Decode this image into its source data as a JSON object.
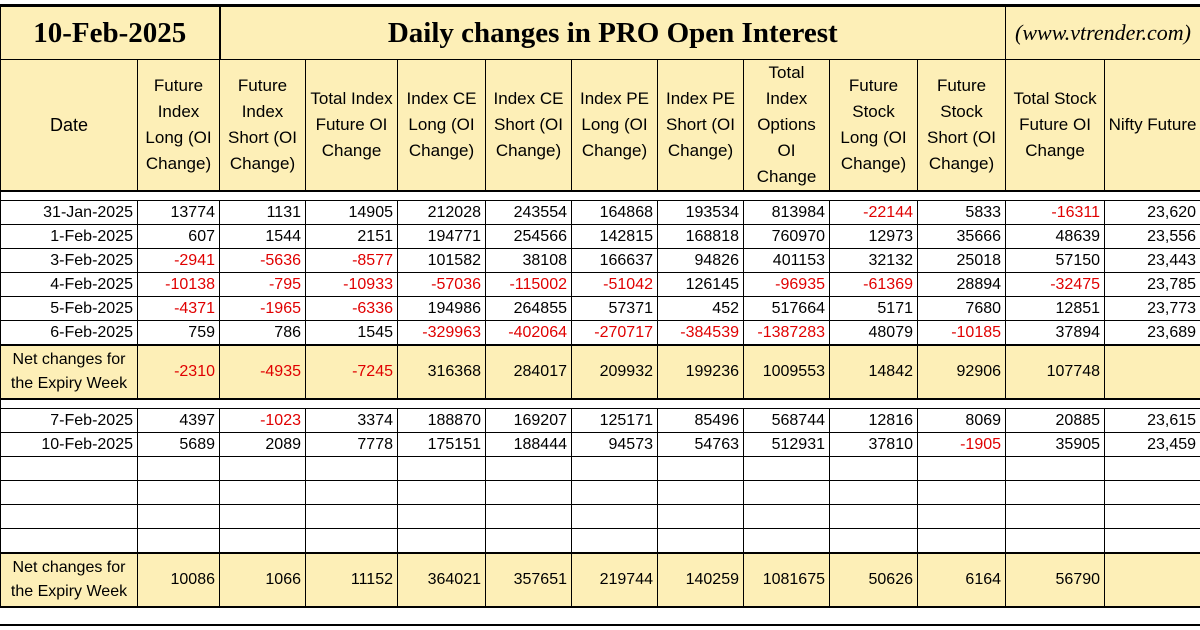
{
  "header": {
    "date": "10-Feb-2025",
    "title": "Daily changes in PRO Open Interest",
    "site": "(www.vtrender.com)"
  },
  "columns": [
    "Date",
    "Future Index Long (OI Change)",
    "Future Index Short (OI Change)",
    "Total Index Future OI Change",
    "Index CE Long (OI Change)",
    "Index CE Short (OI Change)",
    "Index PE Long (OI Change)",
    "Index PE Short (OI Change)",
    "Total Index Options OI Change",
    "Future Stock Long (OI Change)",
    "Future Stock Short (OI Change)",
    "Total Stock Future OI Change",
    "Nifty Future"
  ],
  "week1": [
    [
      "31-Jan-2025",
      "13774",
      "1131",
      "14905",
      "212028",
      "243554",
      "164868",
      "193534",
      "813984",
      "-22144",
      "5833",
      "-16311",
      "23,620"
    ],
    [
      "1-Feb-2025",
      "607",
      "1544",
      "2151",
      "194771",
      "254566",
      "142815",
      "168818",
      "760970",
      "12973",
      "35666",
      "48639",
      "23,556"
    ],
    [
      "3-Feb-2025",
      "-2941",
      "-5636",
      "-8577",
      "101582",
      "38108",
      "166637",
      "94826",
      "401153",
      "32132",
      "25018",
      "57150",
      "23,443"
    ],
    [
      "4-Feb-2025",
      "-10138",
      "-795",
      "-10933",
      "-57036",
      "-115002",
      "-51042",
      "126145",
      "-96935",
      "-61369",
      "28894",
      "-32475",
      "23,785"
    ],
    [
      "5-Feb-2025",
      "-4371",
      "-1965",
      "-6336",
      "194986",
      "264855",
      "57371",
      "452",
      "517664",
      "5171",
      "7680",
      "12851",
      "23,773"
    ],
    [
      "6-Feb-2025",
      "759",
      "786",
      "1545",
      "-329963",
      "-402064",
      "-270717",
      "-384539",
      "-1387283",
      "48079",
      "-10185",
      "37894",
      "23,689"
    ]
  ],
  "net1": {
    "label": "Net changes for the Expiry Week",
    "values": [
      "-2310",
      "-4935",
      "-7245",
      "316368",
      "284017",
      "209932",
      "199236",
      "1009553",
      "14842",
      "92906",
      "107748",
      ""
    ]
  },
  "week2": [
    [
      "7-Feb-2025",
      "4397",
      "-1023",
      "3374",
      "188870",
      "169207",
      "125171",
      "85496",
      "568744",
      "12816",
      "8069",
      "20885",
      "23,615"
    ],
    [
      "10-Feb-2025",
      "5689",
      "2089",
      "7778",
      "175151",
      "188444",
      "94573",
      "54763",
      "512931",
      "37810",
      "-1905",
      "35905",
      "23,459"
    ]
  ],
  "net2": {
    "label": "Net changes for the Expiry Week",
    "values": [
      "10086",
      "1066",
      "11152",
      "364021",
      "357651",
      "219744",
      "140259",
      "1081675",
      "50626",
      "6164",
      "56790",
      ""
    ]
  },
  "colors": {
    "header_bg": "#fdefb7",
    "negative": "#e00000"
  }
}
